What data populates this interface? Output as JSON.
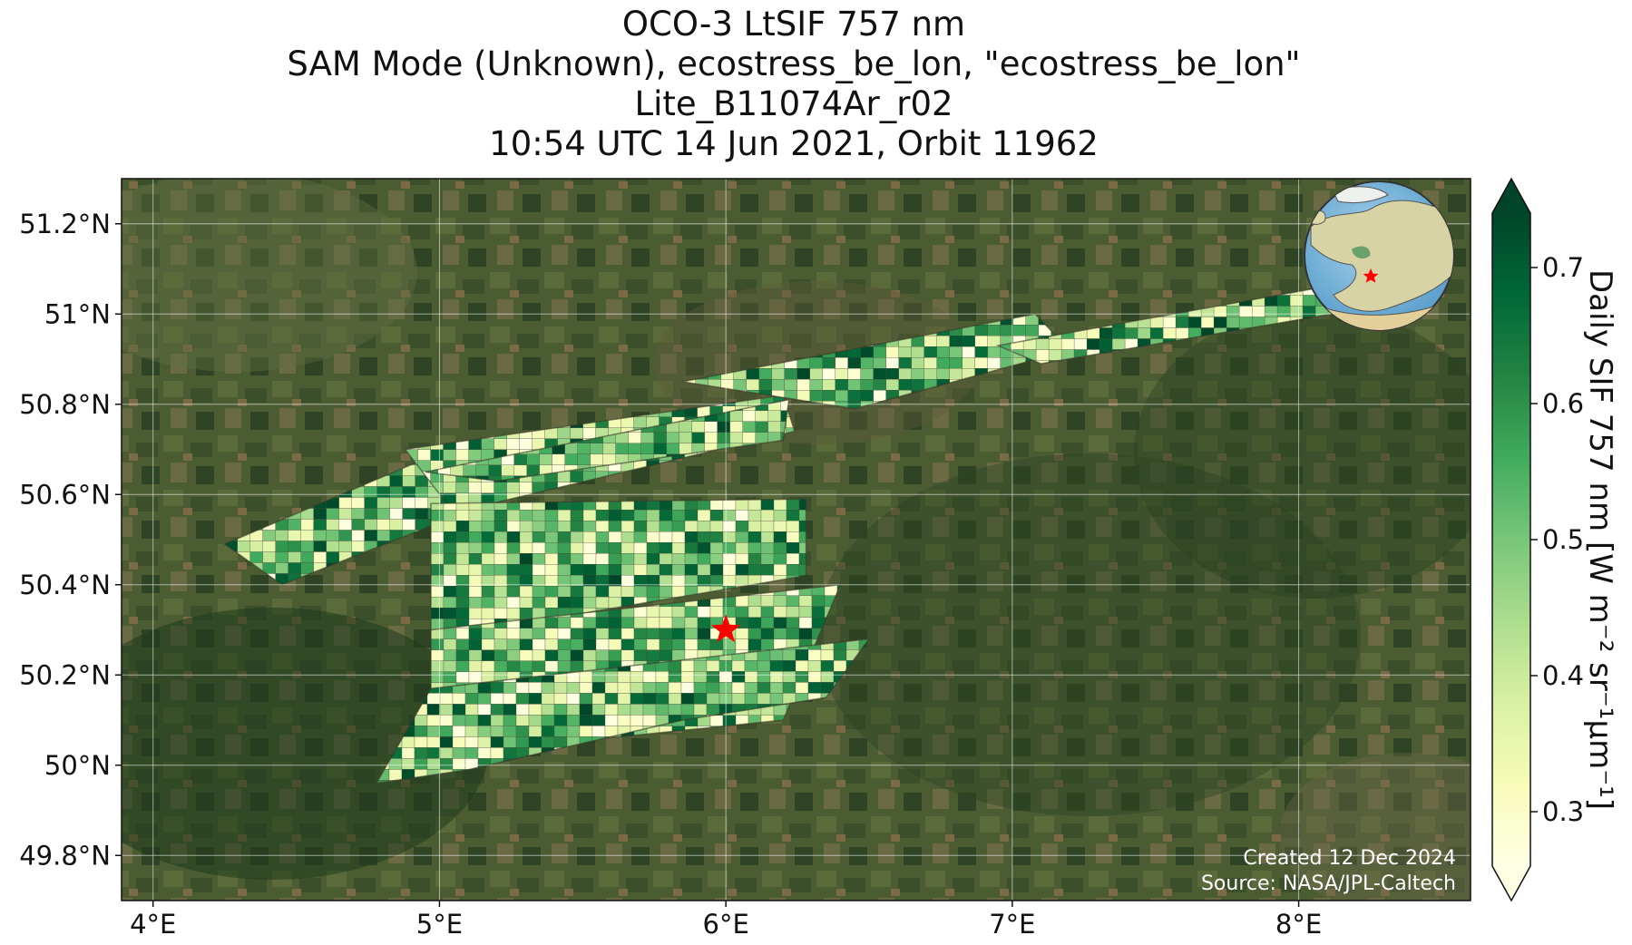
{
  "title": {
    "line1": "OCO-3 LtSIF 757 nm",
    "line2": "SAM Mode (Unknown), ecostress_be_lon, \"ecostress_be_lon\"",
    "line3": "Lite_B11074Ar_r02",
    "line4": "10:54 UTC 14 Jun 2021, Orbit 11962"
  },
  "map": {
    "lon_range": [
      3.89,
      8.6
    ],
    "lat_range": [
      49.7,
      51.3
    ],
    "lon_ticks": [
      {
        "value": 4,
        "label": "4°E"
      },
      {
        "value": 5,
        "label": "5°E"
      },
      {
        "value": 6,
        "label": "6°E"
      },
      {
        "value": 7,
        "label": "7°E"
      },
      {
        "value": 8,
        "label": "8°E"
      }
    ],
    "lat_ticks": [
      {
        "value": 49.8,
        "label": "49.8°N"
      },
      {
        "value": 50.0,
        "label": "50°N"
      },
      {
        "value": 50.2,
        "label": "50.2°N"
      },
      {
        "value": 50.4,
        "label": "50.4°N"
      },
      {
        "value": 50.6,
        "label": "50.6°N"
      },
      {
        "value": 50.8,
        "label": "50.8°N"
      },
      {
        "value": 51.0,
        "label": "51°N"
      },
      {
        "value": 51.2,
        "label": "51.2°N"
      }
    ],
    "gridlines": true,
    "basemap": "satellite imagery",
    "target_marker": {
      "lon": 6.0,
      "lat": 50.3,
      "symbol": "star",
      "color": "#ff0000"
    },
    "credits": {
      "created": "Created 12 Dec 2024",
      "source": "Source: NASA/JPL-Caltech"
    },
    "inset_globe": {
      "marker_color": "#ff0000",
      "region": "Europe"
    }
  },
  "colorbar": {
    "label": "Daily SIF 757 nm [W m⁻² sr⁻¹μm⁻¹]",
    "range": [
      0.26,
      0.74
    ],
    "ticks": [
      {
        "value": 0.3,
        "label": "0.3"
      },
      {
        "value": 0.4,
        "label": "0.4"
      },
      {
        "value": 0.5,
        "label": "0.5"
      },
      {
        "value": 0.6,
        "label": "0.6"
      },
      {
        "value": 0.7,
        "label": "0.7"
      }
    ],
    "colormap": [
      "#ffffe5",
      "#f7fcb9",
      "#d9f0a3",
      "#addd8e",
      "#78c679",
      "#41ab5d",
      "#238443",
      "#006837",
      "#004529"
    ],
    "extend": "both"
  },
  "swaths": [
    {
      "name": "swath-1",
      "corners": [
        [
          4.25,
          50.49
        ],
        [
          4.45,
          50.4
        ],
        [
          5.05,
          50.55
        ],
        [
          4.99,
          50.69
        ]
      ]
    },
    {
      "name": "swath-2",
      "corners": [
        [
          4.88,
          50.7
        ],
        [
          5.05,
          50.56
        ],
        [
          6.24,
          50.74
        ],
        [
          6.2,
          50.82
        ]
      ]
    },
    {
      "name": "swath-3",
      "corners": [
        [
          4.95,
          50.65
        ],
        [
          5.2,
          50.63
        ],
        [
          6.2,
          50.72
        ],
        [
          6.22,
          50.81
        ]
      ]
    },
    {
      "name": "swath-4",
      "corners": [
        [
          5.85,
          50.85
        ],
        [
          6.45,
          50.79
        ],
        [
          7.2,
          50.92
        ],
        [
          7.08,
          51.0
        ]
      ]
    },
    {
      "name": "swath-5",
      "corners": [
        [
          6.95,
          50.93
        ],
        [
          7.1,
          50.89
        ],
        [
          8.3,
          51.02
        ],
        [
          8.35,
          51.09
        ]
      ]
    },
    {
      "name": "swath-6",
      "corners": [
        [
          4.97,
          50.58
        ],
        [
          6.28,
          50.59
        ],
        [
          6.28,
          50.42
        ],
        [
          4.97,
          50.28
        ]
      ]
    },
    {
      "name": "swath-7",
      "corners": [
        [
          4.97,
          50.3
        ],
        [
          6.4,
          50.4
        ],
        [
          6.2,
          50.1
        ],
        [
          4.97,
          50.02
        ]
      ]
    },
    {
      "name": "swath-8",
      "corners": [
        [
          4.78,
          49.96
        ],
        [
          4.97,
          50.17
        ],
        [
          6.5,
          50.28
        ],
        [
          6.35,
          50.15
        ],
        [
          5.85,
          50.1
        ],
        [
          5.1,
          49.99
        ]
      ]
    }
  ]
}
